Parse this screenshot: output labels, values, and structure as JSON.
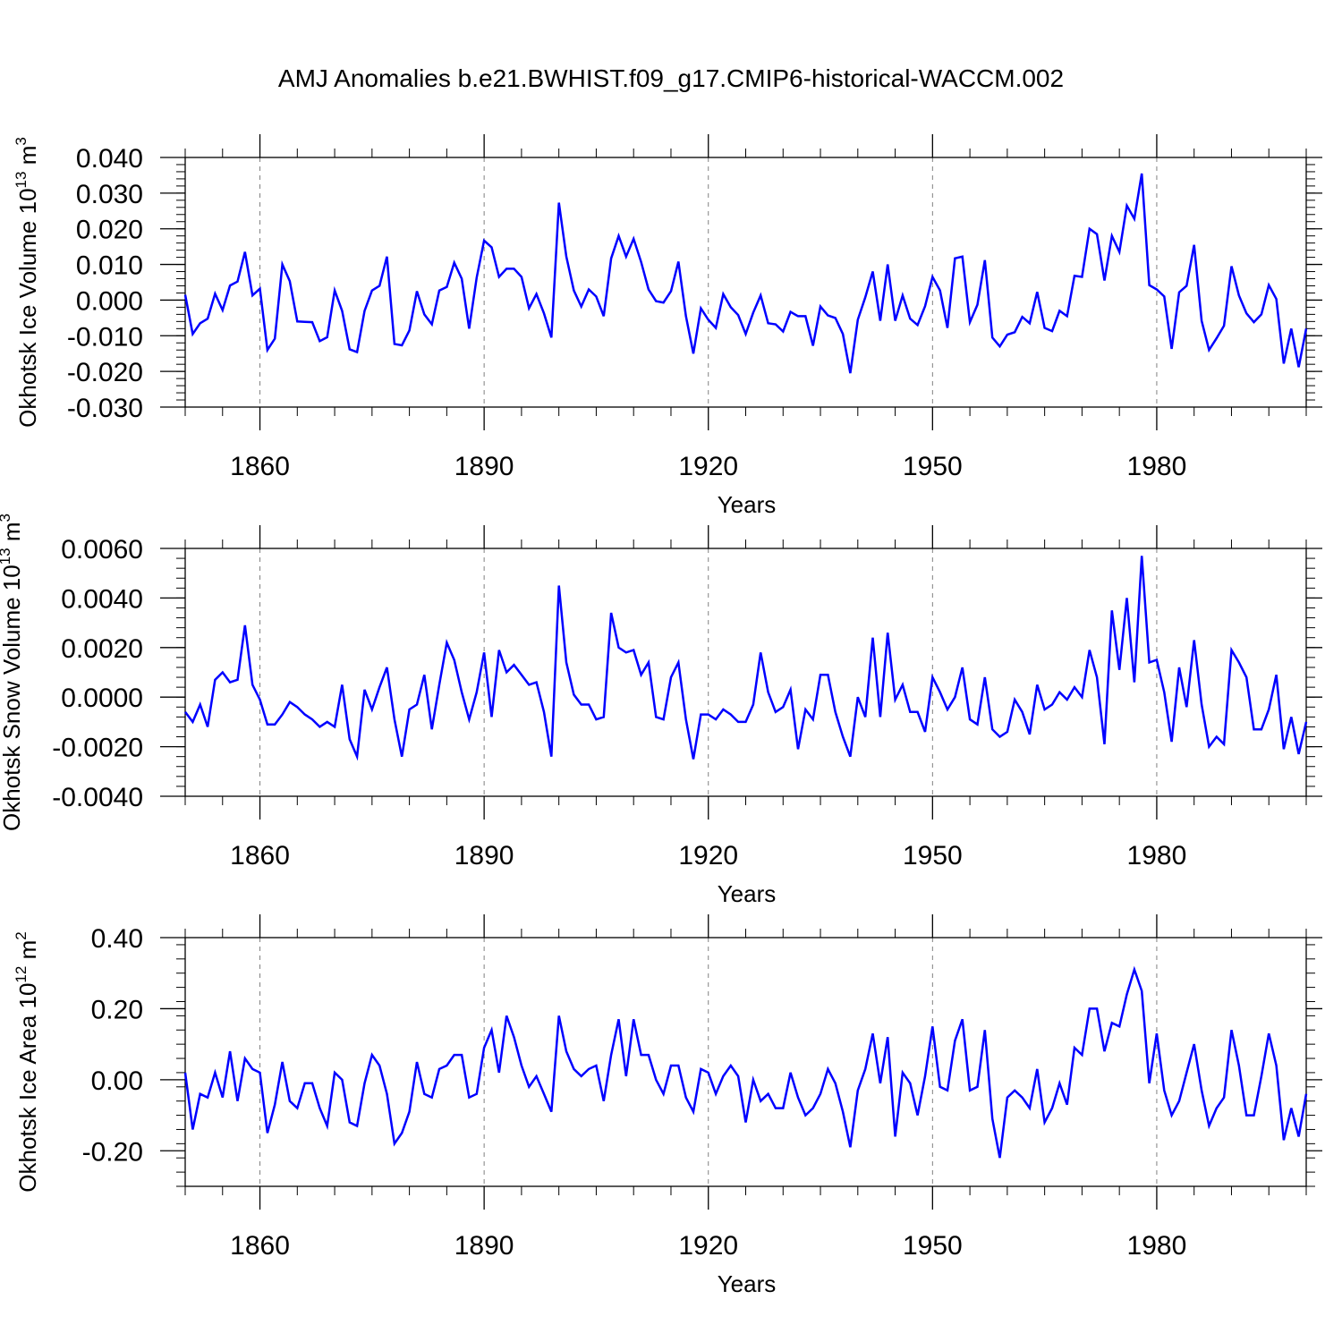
{
  "title": "AMJ Anomalies b.e21.BWHIST.f09_g17.CMIP6-historical-WACCM.002",
  "colors": {
    "line": "#0000ff",
    "axis": "#000000",
    "grid": "#808080"
  },
  "chart_data": [
    {
      "type": "line",
      "ylabel": "Okhotsk Ice Volume 10",
      "ylabel_exp": "13",
      "ylabel_unit": "m",
      "ylabel_unit_exp": "3",
      "xlabel": "Years",
      "xlim": [
        1850,
        2000
      ],
      "ylim": [
        -0.03,
        0.04
      ],
      "xticks": [
        1860,
        1890,
        1920,
        1950,
        1980
      ],
      "xticklabels": [
        "1860",
        "1890",
        "1920",
        "1950",
        "1980"
      ],
      "yticks": [
        -0.03,
        -0.02,
        -0.01,
        0.0,
        0.01,
        0.02,
        0.03,
        0.04
      ],
      "yticklabels": [
        "-0.030",
        "-0.020",
        "-0.010",
        "0.000",
        "0.010",
        "0.020",
        "0.030",
        "0.040"
      ],
      "grid": "vertical dashed at major x ticks",
      "x": [
        1850,
        1851,
        1852,
        1853,
        1854,
        1855,
        1856,
        1857,
        1858,
        1859,
        1860,
        1861,
        1862,
        1863,
        1864,
        1865,
        1866,
        1867,
        1868,
        1869,
        1870,
        1871,
        1872,
        1873,
        1874,
        1875,
        1876,
        1877,
        1878,
        1879,
        1880,
        1881,
        1882,
        1883,
        1884,
        1885,
        1886,
        1887,
        1888,
        1889,
        1890,
        1891,
        1892,
        1893,
        1894,
        1895,
        1896,
        1897,
        1898,
        1899,
        1900,
        1901,
        1902,
        1903,
        1904,
        1905,
        1906,
        1907,
        1908,
        1909,
        1910,
        1911,
        1912,
        1913,
        1914,
        1915,
        1916,
        1917,
        1918,
        1919,
        1920,
        1921,
        1922,
        1923,
        1924,
        1925,
        1926,
        1927,
        1928,
        1929,
        1930,
        1931,
        1932,
        1933,
        1934,
        1935,
        1936,
        1937,
        1938,
        1939,
        1940,
        1941,
        1942,
        1943,
        1944,
        1945,
        1946,
        1947,
        1948,
        1949,
        1950,
        1951,
        1952,
        1953,
        1954,
        1955,
        1956,
        1957,
        1958,
        1959,
        1960,
        1961,
        1962,
        1963,
        1964,
        1965,
        1966,
        1967,
        1968,
        1969,
        1970,
        1971,
        1972,
        1973,
        1974,
        1975,
        1976,
        1977,
        1978,
        1979,
        1980,
        1981,
        1982,
        1983,
        1984,
        1985,
        1986,
        1987,
        1988,
        1989,
        1990,
        1991,
        1992,
        1993,
        1994,
        1995,
        1996,
        1997,
        1998,
        1999,
        2000
      ],
      "series": [
        {
          "values": [
            0.0015,
            -0.0095,
            -0.0065,
            -0.0052,
            0.0018,
            -0.0028,
            0.0041,
            0.0052,
            0.0135,
            0.0013,
            0.0032,
            -0.014,
            -0.0108,
            0.01,
            0.0053,
            -0.006,
            -0.0061,
            -0.0062,
            -0.0115,
            -0.0104,
            0.0027,
            -0.003,
            -0.0138,
            -0.0146,
            -0.003,
            0.0027,
            0.004,
            0.0122,
            -0.0123,
            -0.0127,
            -0.0085,
            0.0025,
            -0.004,
            -0.0068,
            0.0027,
            0.0037,
            0.0105,
            0.006,
            -0.008,
            0.0063,
            0.0167,
            0.0148,
            0.0065,
            0.0088,
            0.0088,
            0.0065,
            -0.0023,
            0.0017,
            -0.0037,
            -0.0105,
            0.0273,
            0.0122,
            0.0027,
            -0.0018,
            0.003,
            0.001,
            -0.0045,
            0.0117,
            0.018,
            0.0122,
            0.0172,
            0.0107,
            0.003,
            -0.0003,
            -0.0007,
            0.0025,
            0.0108,
            -0.0045,
            -0.015,
            -0.0023,
            -0.0055,
            -0.0078,
            0.0017,
            -0.002,
            -0.0042,
            -0.0095,
            -0.0035,
            0.0013,
            -0.0065,
            -0.0068,
            -0.0088,
            -0.0033,
            -0.0045,
            -0.0045,
            -0.0128,
            -0.0018,
            -0.0043,
            -0.005,
            -0.0095,
            -0.0205,
            -0.0055,
            0.0008,
            0.008,
            -0.0058,
            0.01,
            -0.0058,
            0.0013,
            -0.0052,
            -0.007,
            -0.0017,
            0.0065,
            0.0027,
            -0.0078,
            0.0117,
            0.0122,
            -0.0062,
            -0.0013,
            0.0112,
            -0.0105,
            -0.013,
            -0.0097,
            -0.009,
            -0.0047,
            -0.0065,
            0.0023,
            -0.0078,
            -0.0087,
            -0.003,
            -0.0045,
            0.0068,
            0.0065,
            0.02,
            0.0185,
            0.0055,
            0.018,
            0.0135,
            0.0265,
            0.0228,
            0.0355,
            0.0042,
            0.003,
            0.001,
            -0.0137,
            0.0022,
            0.004,
            0.0155,
            -0.0058,
            -0.014,
            -0.0107,
            -0.0072,
            0.0095,
            0.0013,
            -0.0037,
            -0.0062,
            -0.004,
            0.0042,
            0.0003,
            -0.0178,
            -0.008,
            -0.0188,
            -0.008
          ]
        }
      ]
    },
    {
      "type": "line",
      "ylabel": "Okhotsk Snow Volume 10",
      "ylabel_exp": "13",
      "ylabel_unit": "m",
      "ylabel_unit_exp": "3",
      "xlabel": "Years",
      "xlim": [
        1850,
        2000
      ],
      "ylim": [
        -0.004,
        0.006
      ],
      "xticks": [
        1860,
        1890,
        1920,
        1950,
        1980
      ],
      "xticklabels": [
        "1860",
        "1890",
        "1920",
        "1950",
        "1980"
      ],
      "yticks": [
        -0.004,
        -0.002,
        0.0,
        0.002,
        0.004,
        0.006
      ],
      "yticklabels": [
        "-0.0040",
        "-0.0020",
        "0.0000",
        "0.0020",
        "0.0040",
        "0.0060"
      ],
      "grid": "vertical dashed at major x ticks",
      "x": [
        1850,
        1851,
        1852,
        1853,
        1854,
        1855,
        1856,
        1857,
        1858,
        1859,
        1860,
        1861,
        1862,
        1863,
        1864,
        1865,
        1866,
        1867,
        1868,
        1869,
        1870,
        1871,
        1872,
        1873,
        1874,
        1875,
        1876,
        1877,
        1878,
        1879,
        1880,
        1881,
        1882,
        1883,
        1884,
        1885,
        1886,
        1887,
        1888,
        1889,
        1890,
        1891,
        1892,
        1893,
        1894,
        1895,
        1896,
        1897,
        1898,
        1899,
        1900,
        1901,
        1902,
        1903,
        1904,
        1905,
        1906,
        1907,
        1908,
        1909,
        1910,
        1911,
        1912,
        1913,
        1914,
        1915,
        1916,
        1917,
        1918,
        1919,
        1920,
        1921,
        1922,
        1923,
        1924,
        1925,
        1926,
        1927,
        1928,
        1929,
        1930,
        1931,
        1932,
        1933,
        1934,
        1935,
        1936,
        1937,
        1938,
        1939,
        1940,
        1941,
        1942,
        1943,
        1944,
        1945,
        1946,
        1947,
        1948,
        1949,
        1950,
        1951,
        1952,
        1953,
        1954,
        1955,
        1956,
        1957,
        1958,
        1959,
        1960,
        1961,
        1962,
        1963,
        1964,
        1965,
        1966,
        1967,
        1968,
        1969,
        1970,
        1971,
        1972,
        1973,
        1974,
        1975,
        1976,
        1977,
        1978,
        1979,
        1980,
        1981,
        1982,
        1983,
        1984,
        1985,
        1986,
        1987,
        1988,
        1989,
        1990,
        1991,
        1992,
        1993,
        1994,
        1995,
        1996,
        1997,
        1998,
        1999,
        2000
      ],
      "series": [
        {
          "values": [
            -0.0006,
            -0.001,
            -0.0003,
            -0.0012,
            0.0007,
            0.001,
            0.0006,
            0.0007,
            0.0029,
            0.0005,
            -0.0001,
            -0.0011,
            -0.0011,
            -0.0007,
            -0.0002,
            -0.0004,
            -0.0007,
            -0.0009,
            -0.0012,
            -0.001,
            -0.0012,
            0.0005,
            -0.0017,
            -0.0024,
            0.0003,
            -0.0005,
            0.0004,
            0.0012,
            -0.0009,
            -0.0024,
            -0.0005,
            -0.0003,
            0.0009,
            -0.0013,
            0.0005,
            0.0022,
            0.0015,
            0.0002,
            -0.0009,
            0.0002,
            0.0018,
            -0.0008,
            0.0019,
            0.001,
            0.0013,
            0.0009,
            0.0005,
            0.0006,
            -0.0006,
            -0.0024,
            0.0045,
            0.0014,
            0.0001,
            -0.0003,
            -0.0003,
            -0.0009,
            -0.0008,
            0.0034,
            0.002,
            0.0018,
            0.0019,
            0.0009,
            0.0014,
            -0.0008,
            -0.0009,
            0.0008,
            0.0014,
            -0.0009,
            -0.0025,
            -0.0007,
            -0.0007,
            -0.0009,
            -0.0005,
            -0.0007,
            -0.001,
            -0.001,
            -0.0003,
            0.0018,
            0.0002,
            -0.0006,
            -0.0004,
            0.0003,
            -0.0021,
            -0.0005,
            -0.0009,
            0.0009,
            0.0009,
            -0.0006,
            -0.0016,
            -0.0024,
            -0.0,
            -0.0008,
            0.0024,
            -0.0008,
            0.0026,
            -0.0001,
            0.0005,
            -0.0006,
            -0.0006,
            -0.0014,
            0.0008,
            0.0002,
            -0.0005,
            0.0,
            0.0012,
            -0.0009,
            -0.0011,
            0.0008,
            -0.0013,
            -0.0016,
            -0.0014,
            -0.0001,
            -0.0006,
            -0.0015,
            0.0005,
            -0.0005,
            -0.0003,
            0.0002,
            -0.0001,
            0.0004,
            0.0,
            0.0019,
            0.0008,
            -0.0019,
            0.0035,
            0.0011,
            0.004,
            0.0006,
            0.0057,
            0.0014,
            0.0015,
            0.0002,
            -0.0018,
            0.0012,
            -0.0004,
            0.0023,
            -0.0003,
            -0.002,
            -0.0016,
            -0.0019,
            0.0019,
            0.0014,
            0.0008,
            -0.0013,
            -0.0013,
            -0.0005,
            0.0009,
            -0.0021,
            -0.0008,
            -0.0023,
            -0.001
          ]
        }
      ]
    },
    {
      "type": "line",
      "ylabel": "Okhotsk Ice Area 10",
      "ylabel_exp": "12",
      "ylabel_unit": "m",
      "ylabel_unit_exp": "2",
      "xlabel": "Years",
      "xlim": [
        1850,
        2000
      ],
      "ylim": [
        -0.3,
        0.4
      ],
      "xticks": [
        1860,
        1890,
        1920,
        1950,
        1980
      ],
      "xticklabels": [
        "1860",
        "1890",
        "1920",
        "1950",
        "1980"
      ],
      "yticks": [
        -0.2,
        0.0,
        0.2,
        0.4
      ],
      "yticklabels": [
        "-0.20",
        "0.00",
        "0.20",
        "0.40"
      ],
      "grid": "vertical dashed at major x ticks",
      "x": [
        1850,
        1851,
        1852,
        1853,
        1854,
        1855,
        1856,
        1857,
        1858,
        1859,
        1860,
        1861,
        1862,
        1863,
        1864,
        1865,
        1866,
        1867,
        1868,
        1869,
        1870,
        1871,
        1872,
        1873,
        1874,
        1875,
        1876,
        1877,
        1878,
        1879,
        1880,
        1881,
        1882,
        1883,
        1884,
        1885,
        1886,
        1887,
        1888,
        1889,
        1890,
        1891,
        1892,
        1893,
        1894,
        1895,
        1896,
        1897,
        1898,
        1899,
        1900,
        1901,
        1902,
        1903,
        1904,
        1905,
        1906,
        1907,
        1908,
        1909,
        1910,
        1911,
        1912,
        1913,
        1914,
        1915,
        1916,
        1917,
        1918,
        1919,
        1920,
        1921,
        1922,
        1923,
        1924,
        1925,
        1926,
        1927,
        1928,
        1929,
        1930,
        1931,
        1932,
        1933,
        1934,
        1935,
        1936,
        1937,
        1938,
        1939,
        1940,
        1941,
        1942,
        1943,
        1944,
        1945,
        1946,
        1947,
        1948,
        1949,
        1950,
        1951,
        1952,
        1953,
        1954,
        1955,
        1956,
        1957,
        1958,
        1959,
        1960,
        1961,
        1962,
        1963,
        1964,
        1965,
        1966,
        1967,
        1968,
        1969,
        1970,
        1971,
        1972,
        1973,
        1974,
        1975,
        1976,
        1977,
        1978,
        1979,
        1980,
        1981,
        1982,
        1983,
        1984,
        1985,
        1986,
        1987,
        1988,
        1989,
        1990,
        1991,
        1992,
        1993,
        1994,
        1995,
        1996,
        1997,
        1998,
        1999,
        2000
      ],
      "series": [
        {
          "values": [
            0.02,
            -0.14,
            -0.04,
            -0.05,
            0.02,
            -0.05,
            0.08,
            -0.06,
            0.06,
            0.03,
            0.02,
            -0.15,
            -0.07,
            0.05,
            -0.06,
            -0.08,
            -0.01,
            -0.01,
            -0.08,
            -0.13,
            0.02,
            0.0,
            -0.12,
            -0.13,
            -0.01,
            0.07,
            0.04,
            -0.04,
            -0.18,
            -0.15,
            -0.09,
            0.05,
            -0.04,
            -0.05,
            0.03,
            0.04,
            0.07,
            0.07,
            -0.05,
            -0.04,
            0.09,
            0.14,
            0.02,
            0.18,
            0.12,
            0.04,
            -0.02,
            0.01,
            -0.04,
            -0.09,
            0.18,
            0.08,
            0.03,
            0.01,
            0.03,
            0.04,
            -0.06,
            0.07,
            0.17,
            0.01,
            0.17,
            0.07,
            0.07,
            0.0,
            -0.04,
            0.04,
            0.04,
            -0.05,
            -0.09,
            0.03,
            0.02,
            -0.04,
            0.01,
            0.04,
            0.01,
            -0.12,
            0.0,
            -0.06,
            -0.04,
            -0.08,
            -0.08,
            0.02,
            -0.05,
            -0.1,
            -0.08,
            -0.04,
            0.03,
            -0.01,
            -0.09,
            -0.19,
            -0.03,
            0.03,
            0.13,
            -0.01,
            0.12,
            -0.16,
            0.02,
            -0.01,
            -0.1,
            0.01,
            0.15,
            -0.02,
            -0.03,
            0.11,
            0.17,
            -0.03,
            -0.02,
            0.14,
            -0.11,
            -0.22,
            -0.05,
            -0.03,
            -0.05,
            -0.08,
            0.03,
            -0.12,
            -0.08,
            -0.01,
            -0.07,
            0.09,
            0.07,
            0.2,
            0.2,
            0.08,
            0.16,
            0.15,
            0.24,
            0.31,
            0.25,
            -0.01,
            0.13,
            -0.03,
            -0.1,
            -0.06,
            0.02,
            0.1,
            -0.03,
            -0.13,
            -0.08,
            -0.05,
            0.14,
            0.04,
            -0.1,
            -0.1,
            0.01,
            0.13,
            0.04,
            -0.17,
            -0.08,
            -0.16,
            -0.04
          ]
        }
      ]
    }
  ]
}
